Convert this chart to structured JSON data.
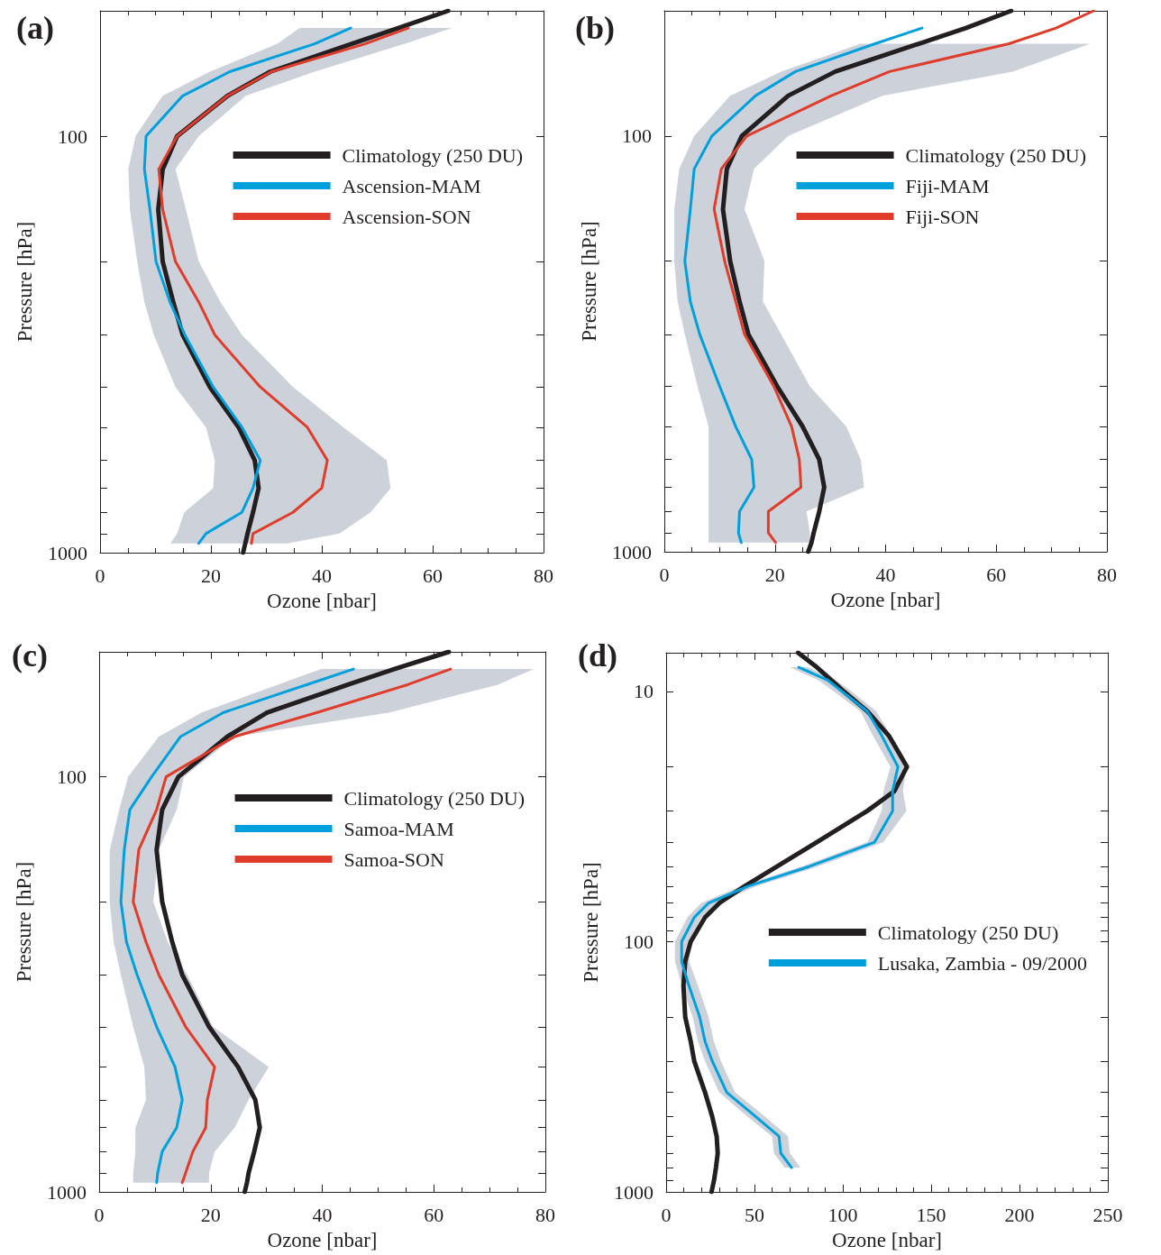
{
  "chart_data": [
    {
      "type": "line",
      "title": "(a)",
      "orientation": "horizontal",
      "xlabel": "Ozone [nbar]",
      "ylabel": "Pressure [hPa]",
      "log": "y",
      "legend": "top right",
      "xlim": [
        0,
        80
      ],
      "xticks": [
        0,
        20,
        40,
        60,
        80
      ],
      "ylim": [
        1000,
        50
      ],
      "yticks": [
        100,
        {
          "value": 200,
          "label": null
        },
        {
          "value": 300,
          "label": null
        },
        {
          "value": 400,
          "label": null
        },
        {
          "value": 500,
          "label": null
        },
        {
          "value": 600,
          "label": null
        },
        {
          "value": 700,
          "label": null
        },
        {
          "value": 800,
          "label": null
        },
        {
          "value": 900,
          "label": null
        },
        1000
      ],
      "x": [
        50,
        55,
        60,
        70,
        80,
        100,
        120,
        150,
        200,
        250,
        300,
        400,
        500,
        600,
        700,
        800,
        900,
        950,
        1000
      ],
      "series": [
        {
          "name": "Climatology (250 DU)",
          "color": "#231f20",
          "values": [
            62.8,
            53.8,
            45.4,
            30.7,
            23.0,
            13.9,
            11.3,
            10.5,
            11.3,
            13.2,
            14.9,
            19.8,
            25.0,
            27.9,
            28.6,
            27.6,
            26.6,
            26.2,
            25.8
          ]
        },
        {
          "name": "Ascension-MAM",
          "color": "#00a0dc",
          "values": [
            null,
            45.2,
            38.7,
            23.4,
            14.9,
            8.3,
            8.0,
            9.0,
            10.1,
            12.6,
            15.3,
            20.4,
            25.6,
            28.9,
            27.6,
            25.6,
            19.1,
            17.8,
            null
          ]
        },
        {
          "name": "Ascension-SON",
          "color": "#e03c2c",
          "values": [
            null,
            55.6,
            47.8,
            30.9,
            23.0,
            13.9,
            10.6,
            11.3,
            13.6,
            17.8,
            20.7,
            28.9,
            37.4,
            41.0,
            40.0,
            34.8,
            27.6,
            27.3,
            null
          ],
          "lower": [
            null,
            36.0,
            32.0,
            19.8,
            11.3,
            6.4,
            5.1,
            5.4,
            6.7,
            8.0,
            9.7,
            13.6,
            19.1,
            20.7,
            20.4,
            15.2,
            13.9,
            12.7,
            null
          ],
          "upper": [
            null,
            63.5,
            55.0,
            38.7,
            26.3,
            17.8,
            13.6,
            15.5,
            17.8,
            21.7,
            25.6,
            34.8,
            43.9,
            51.7,
            52.4,
            48.8,
            43.2,
            33.8,
            null
          ]
        }
      ]
    },
    {
      "type": "line",
      "title": "(b)",
      "orientation": "horizontal",
      "xlabel": "Ozone [nbar]",
      "ylabel": "Pressure [hPa]",
      "log": "y",
      "legend": "top right",
      "xlim": [
        0,
        80
      ],
      "xticks": [
        0,
        20,
        40,
        60,
        80
      ],
      "ylim": [
        1000,
        50
      ],
      "yticks": [
        100,
        {
          "value": 200,
          "label": null
        },
        {
          "value": 300,
          "label": null
        },
        {
          "value": 400,
          "label": null
        },
        {
          "value": 500,
          "label": null
        },
        {
          "value": 600,
          "label": null
        },
        {
          "value": 700,
          "label": null
        },
        {
          "value": 800,
          "label": null
        },
        {
          "value": 900,
          "label": null
        },
        1000
      ],
      "x": [
        50,
        55,
        60,
        70,
        80,
        100,
        120,
        150,
        200,
        250,
        300,
        400,
        500,
        600,
        700,
        800,
        900,
        950,
        1000
      ],
      "series": [
        {
          "name": "Climatology (250 DU)",
          "color": "#231f20",
          "values": [
            62.7,
            54.5,
            46.0,
            30.9,
            22.4,
            14.0,
            11.3,
            10.6,
            11.9,
            13.6,
            15.2,
            20.4,
            25.0,
            28.0,
            28.9,
            28.0,
            27.0,
            26.6,
            26.0
          ]
        },
        {
          "name": "Fiji-MAM",
          "color": "#00a0dc",
          "values": [
            null,
            46.6,
            38.1,
            23.7,
            16.5,
            8.6,
            5.4,
            4.7,
            3.7,
            4.7,
            6.4,
            10.0,
            12.9,
            15.8,
            16.2,
            13.6,
            13.4,
            13.9,
            null
          ]
        },
        {
          "name": "Fiji-SON",
          "color": "#e03c2c",
          "values": [
            77.6,
            70.8,
            62.3,
            40.7,
            30.2,
            14.9,
            10.3,
            9.0,
            10.9,
            12.9,
            14.5,
            19.8,
            23.0,
            24.4,
            24.7,
            18.8,
            18.8,
            20.1,
            null
          ],
          "lower": [
            null,
            null,
            35.5,
            21.1,
            11.9,
            5.4,
            2.7,
            1.8,
            1.8,
            2.4,
            3.7,
            6.0,
            8.0,
            8.0,
            8.0,
            8.0,
            8.0,
            8.0,
            null
          ],
          "upper": [
            null,
            null,
            77.0,
            63.0,
            39.4,
            22.4,
            16.2,
            14.5,
            18.1,
            17.8,
            21.1,
            26.3,
            32.9,
            35.5,
            36.1,
            25.7,
            26.3,
            26.3,
            null
          ]
        }
      ]
    },
    {
      "type": "line",
      "title": "(c)",
      "orientation": "horizontal",
      "xlabel": "Ozone [nbar]",
      "ylabel": "Pressure [hPa]",
      "log": "y",
      "legend": "top right",
      "xlim": [
        0,
        80
      ],
      "xticks": [
        0,
        20,
        40,
        60,
        80
      ],
      "ylim": [
        1000,
        50
      ],
      "yticks": [
        100,
        {
          "value": 200,
          "label": null
        },
        {
          "value": 300,
          "label": null
        },
        {
          "value": 400,
          "label": null
        },
        {
          "value": 500,
          "label": null
        },
        {
          "value": 600,
          "label": null
        },
        {
          "value": 700,
          "label": null
        },
        {
          "value": 800,
          "label": null
        },
        {
          "value": 900,
          "label": null
        },
        1000
      ],
      "x": [
        50,
        55,
        60,
        70,
        80,
        100,
        120,
        150,
        200,
        250,
        300,
        400,
        500,
        600,
        700,
        800,
        900,
        950,
        1000
      ],
      "series": [
        {
          "name": "Climatology (250 DU)",
          "color": "#231f20",
          "values": [
            62.7,
            52.9,
            44.6,
            30.1,
            23.0,
            14.2,
            11.3,
            10.3,
            11.3,
            13.1,
            14.9,
            19.7,
            24.9,
            28.0,
            28.8,
            27.8,
            26.8,
            26.5,
            26.1
          ]
        },
        {
          "name": "Samoa-MAM",
          "color": "#00a0dc",
          "values": [
            null,
            45.6,
            37.2,
            22.3,
            14.6,
            9.4,
            5.5,
            4.5,
            3.9,
            4.9,
            6.8,
            10.3,
            13.6,
            14.9,
            13.9,
            11.3,
            10.5,
            10.3,
            null
          ]
        },
        {
          "name": "Samoa-SON",
          "color": "#e03c2c",
          "values": [
            null,
            63.0,
            55.3,
            39.1,
            24.3,
            12.0,
            10.3,
            7.1,
            6.1,
            8.4,
            10.7,
            15.5,
            20.7,
            19.4,
            19.1,
            16.8,
            15.5,
            14.9,
            null
          ],
          "lower": [
            null,
            39.8,
            32.0,
            18.4,
            10.7,
            5.2,
            3.6,
            1.9,
            1.9,
            2.6,
            3.9,
            6.1,
            8.1,
            8.4,
            6.5,
            6.5,
            6.1,
            6.1,
            null
          ],
          "upper": [
            null,
            77.9,
            71.5,
            52.1,
            24.3,
            15.2,
            13.9,
            10.7,
            9.7,
            12.3,
            15.8,
            20.4,
            30.4,
            26.8,
            24.3,
            20.7,
            19.7,
            19.7,
            null
          ]
        }
      ]
    },
    {
      "type": "line",
      "title": "(d)",
      "orientation": "horizontal",
      "xlabel": "Ozone [nbar]",
      "ylabel": "Pressure [hPa]",
      "log": "y",
      "legend": "right",
      "xlim": [
        0,
        250
      ],
      "xticks": [
        0,
        50,
        100,
        150,
        200,
        250
      ],
      "ylim": [
        1000,
        7
      ],
      "yticks": [
        10,
        {
          "value": 20,
          "label": null
        },
        {
          "value": 30,
          "label": null
        },
        {
          "value": 40,
          "label": null
        },
        {
          "value": 50,
          "label": null
        },
        {
          "value": 60,
          "label": null
        },
        {
          "value": 70,
          "label": null
        },
        {
          "value": 80,
          "label": null
        },
        {
          "value": 90,
          "label": null
        },
        100,
        {
          "value": 200,
          "label": null
        },
        {
          "value": 300,
          "label": null
        },
        {
          "value": 400,
          "label": null
        },
        {
          "value": 500,
          "label": null
        },
        {
          "value": 600,
          "label": null
        },
        {
          "value": 700,
          "label": null
        },
        {
          "value": 800,
          "label": null
        },
        {
          "value": 900,
          "label": null
        },
        1000
      ],
      "x": [
        7,
        8,
        9,
        10,
        12,
        15,
        20,
        25,
        30,
        40,
        50,
        60,
        70,
        80,
        100,
        120,
        150,
        200,
        250,
        300,
        400,
        500,
        600,
        700,
        800,
        900,
        1000
      ],
      "series": [
        {
          "name": "Climatology (250 DU)",
          "color": "#231f20",
          "values": [
            74.7,
            85.3,
            93.5,
            100.6,
            113.9,
            126.0,
            136.3,
            129.2,
            113.9,
            85.3,
            62.9,
            44.5,
            30.2,
            22.0,
            13.9,
            10.8,
            9.8,
            10.8,
            13.9,
            15.9,
            22.0,
            26.1,
            28.6,
            29.2,
            28.2,
            27.1,
            25.7
          ]
        },
        {
          "name": "Lusaka, Zambia - 09/2000",
          "color": "#00a0dc",
          "values": [
            null,
            75.1,
            91.4,
            99.6,
            113.9,
            122.0,
            131.2,
            128.2,
            128.2,
            118.0,
            81.2,
            46.5,
            24.1,
            15.9,
            8.8,
            8.8,
            12.9,
            19.0,
            22.0,
            26.1,
            34.3,
            50.6,
            63.9,
            64.9,
            71.0,
            null,
            null
          ],
          "lower": [
            null,
            70,
            86,
            95,
            110,
            117,
            127,
            123,
            122,
            114,
            77,
            42,
            20,
            12,
            5,
            5,
            9,
            15,
            18,
            22,
            30,
            46,
            60,
            61,
            67,
            null,
            null
          ],
          "upper": [
            null,
            80,
            96,
            105,
            119,
            127,
            136,
            134,
            136,
            123,
            86,
            51,
            29,
            20,
            13,
            13,
            18,
            24,
            27,
            31,
            39,
            56,
            69,
            70,
            76,
            null,
            null
          ]
        }
      ]
    }
  ]
}
